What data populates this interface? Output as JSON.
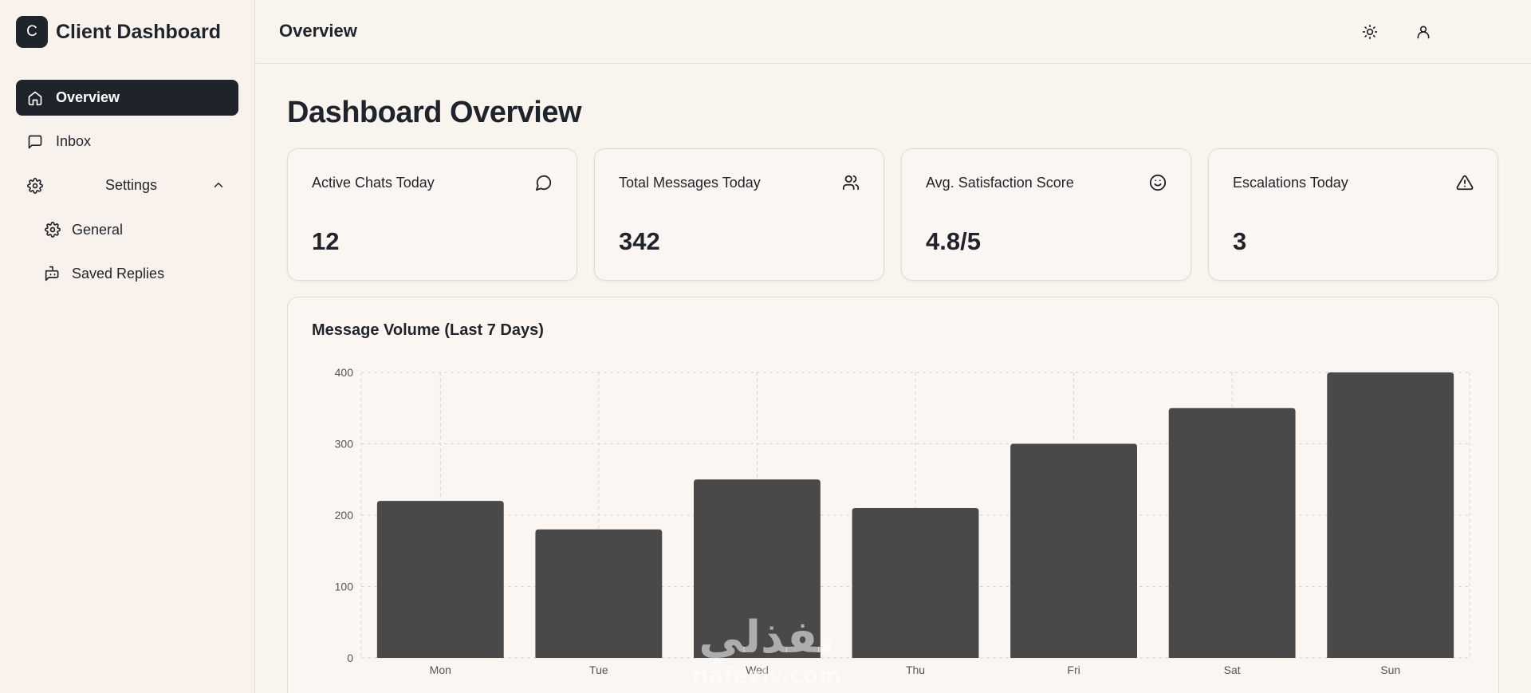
{
  "sidebar": {
    "brand_letter": "C",
    "brand_title": "Client Dashboard",
    "items": [
      {
        "label": "Overview",
        "icon": "home-icon"
      },
      {
        "label": "Inbox",
        "icon": "message-square-icon"
      },
      {
        "label": "Settings",
        "icon": "gear-icon"
      }
    ],
    "sub_items": [
      {
        "label": "General",
        "icon": "gear-icon"
      },
      {
        "label": "Saved Replies",
        "icon": "bot-message-icon"
      }
    ]
  },
  "header": {
    "title": "Overview",
    "theme_icon": "sun-icon",
    "user_icon": "user-icon"
  },
  "main": {
    "page_title": "Dashboard Overview",
    "stats": [
      {
        "label": "Active Chats Today",
        "value": "12",
        "icon": "message-circle-icon"
      },
      {
        "label": "Total Messages Today",
        "value": "342",
        "icon": "users-icon"
      },
      {
        "label": "Avg. Satisfaction Score",
        "value": "4.8/5",
        "icon": "smile-icon"
      },
      {
        "label": "Escalations Today",
        "value": "3",
        "icon": "alert-triangle-icon"
      }
    ]
  },
  "chart_data": {
    "type": "bar",
    "title": "Message Volume (Last 7 Days)",
    "categories": [
      "Mon",
      "Tue",
      "Wed",
      "Thu",
      "Fri",
      "Sat",
      "Sun"
    ],
    "values": [
      220,
      180,
      250,
      210,
      300,
      350,
      400
    ],
    "ylim": [
      0,
      400
    ],
    "yticks": [
      0,
      100,
      200,
      300,
      400
    ],
    "grid": true,
    "bar_color": "#4a4949"
  },
  "watermark": {
    "arabic": "نفذلي",
    "latin": "nafezly.com"
  },
  "colors": {
    "background": "#faf4ee",
    "accent": "#1f232b"
  }
}
